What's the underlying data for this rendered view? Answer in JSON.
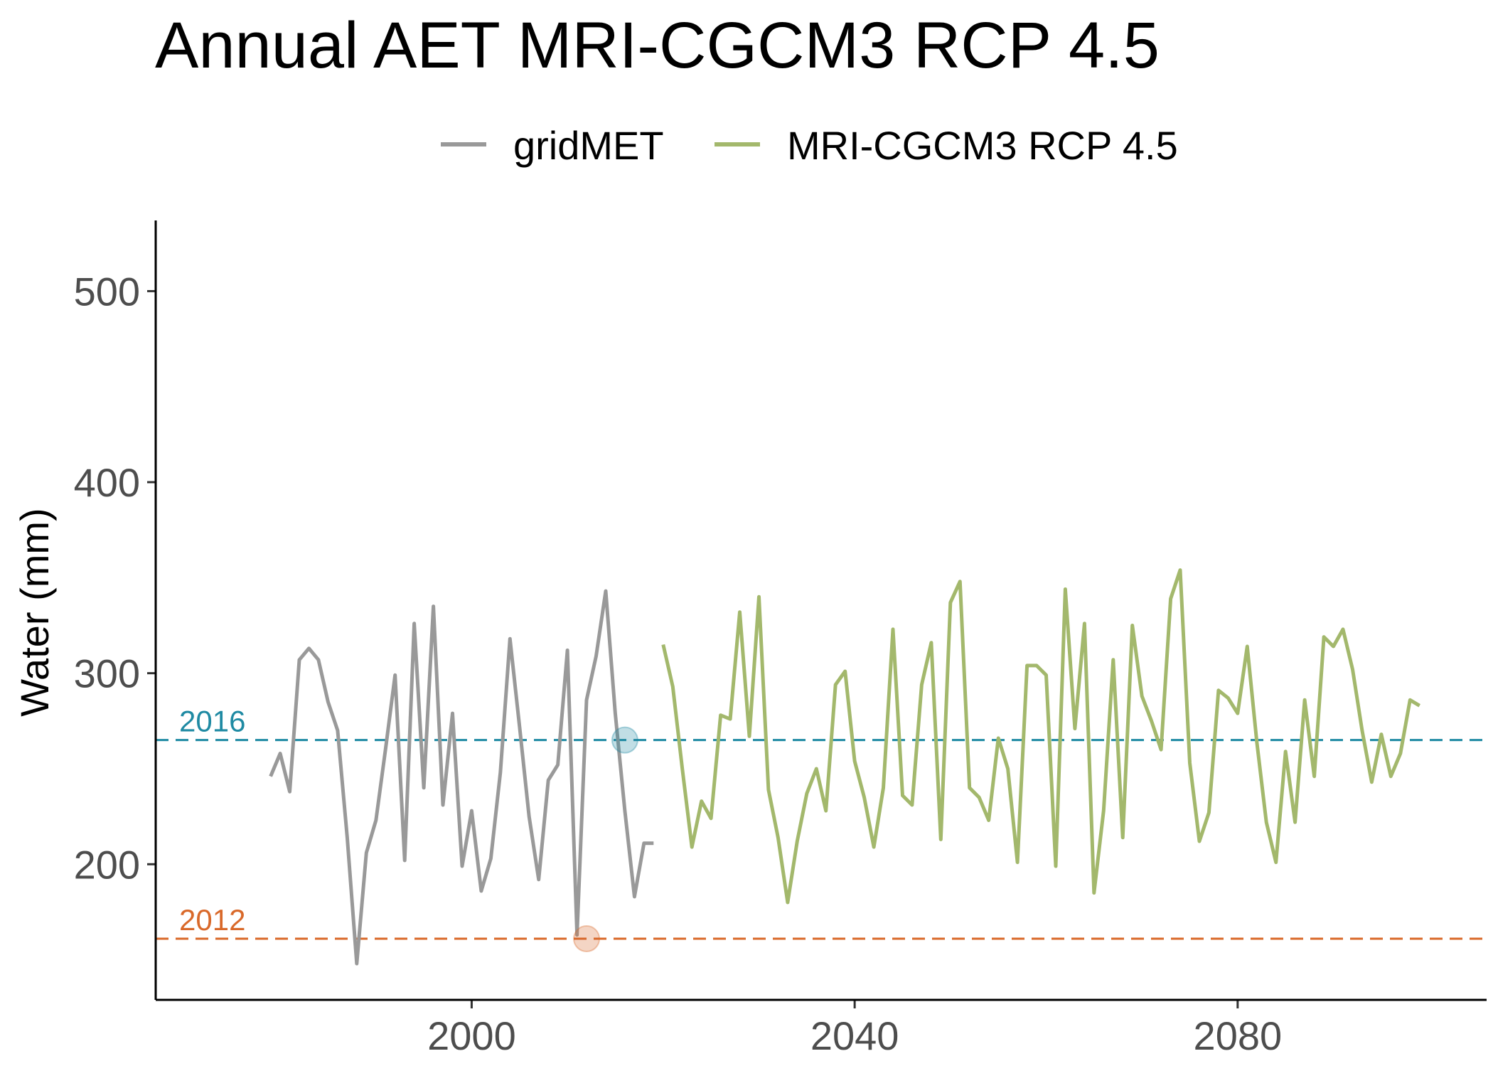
{
  "chart_data": {
    "type": "line",
    "title": "Annual AET MRI-CGCM3 RCP 4.5",
    "xlabel": "",
    "ylabel": "Water (mm)",
    "xlim": [
      1967,
      2106
    ],
    "ylim": [
      129,
      537
    ],
    "x_ticks": [
      2000,
      2040,
      2080
    ],
    "y_ticks": [
      200,
      300,
      400,
      500
    ],
    "grid": false,
    "legend_position": "top",
    "series": [
      {
        "name": "gridMET",
        "color": "#999999",
        "x": [
          1979,
          1980,
          1981,
          1982,
          1983,
          1984,
          1985,
          1986,
          1987,
          1988,
          1989,
          1990,
          1991,
          1992,
          1993,
          1994,
          1995,
          1996,
          1997,
          1998,
          1999,
          2000,
          2001,
          2002,
          2003,
          2004,
          2005,
          2006,
          2007,
          2008,
          2009,
          2010,
          2011,
          2012,
          2013,
          2014,
          2015,
          2016,
          2017,
          2018,
          2019
        ],
        "values": [
          246,
          258,
          238,
          307,
          313,
          307,
          285,
          270,
          214,
          148,
          206,
          223,
          260,
          299,
          202,
          326,
          240,
          335,
          231,
          279,
          199,
          228,
          186,
          203,
          248,
          318,
          272,
          225,
          192,
          244,
          252,
          312,
          163,
          286,
          309,
          343,
          279,
          228,
          183,
          211,
          211
        ]
      },
      {
        "name": "MRI-CGCM3 RCP 4.5",
        "color": "#a3b86c",
        "x": [
          2020,
          2021,
          2022,
          2023,
          2024,
          2025,
          2026,
          2027,
          2028,
          2029,
          2030,
          2031,
          2032,
          2033,
          2034,
          2035,
          2036,
          2037,
          2038,
          2039,
          2040,
          2041,
          2042,
          2043,
          2044,
          2045,
          2046,
          2047,
          2048,
          2049,
          2050,
          2051,
          2052,
          2053,
          2054,
          2055,
          2056,
          2057,
          2058,
          2059,
          2060,
          2061,
          2062,
          2063,
          2064,
          2065,
          2066,
          2067,
          2068,
          2069,
          2070,
          2071,
          2072,
          2073,
          2074,
          2075,
          2076,
          2077,
          2078,
          2079,
          2080,
          2081,
          2082,
          2083,
          2084,
          2085,
          2086,
          2087,
          2088,
          2089,
          2090,
          2091,
          2092,
          2093,
          2094,
          2095,
          2096,
          2097,
          2098,
          2099
        ],
        "values": [
          315,
          293,
          250,
          209,
          233,
          224,
          278,
          276,
          332,
          267,
          340,
          239,
          214,
          180,
          212,
          237,
          250,
          228,
          294,
          301,
          254,
          235,
          209,
          240,
          323,
          236,
          231,
          294,
          316,
          213,
          337,
          348,
          240,
          235,
          223,
          266,
          250,
          201,
          304,
          304,
          299,
          199,
          344,
          271,
          326,
          185,
          228,
          307,
          214,
          325,
          288,
          275,
          260,
          339,
          354,
          253,
          212,
          227,
          291,
          287,
          279,
          314,
          264,
          222,
          201,
          259,
          222,
          286,
          246,
          319,
          314,
          323,
          302,
          270,
          243,
          268,
          246,
          258,
          286,
          283
        ]
      }
    ],
    "reference_lines": [
      {
        "label": "2016",
        "y": 265,
        "color": "#1f8aa3",
        "marker_x": 2016
      },
      {
        "label": "2012",
        "y": 161,
        "color": "#d9692a",
        "marker_x": 2012
      }
    ]
  }
}
